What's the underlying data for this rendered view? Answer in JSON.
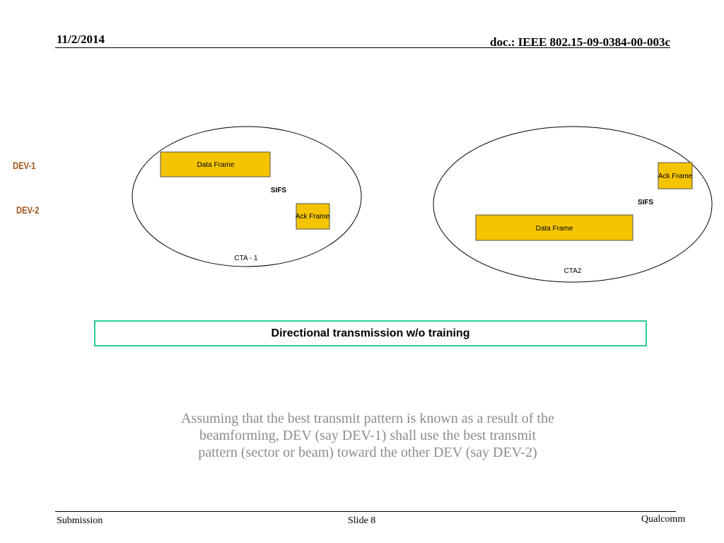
{
  "header": {
    "date": "11/2/2014",
    "doc": "doc.: IEEE 802.15-09-0384-00-003c"
  },
  "devices": {
    "dev1": "DEV-1",
    "dev2": "DEV-2"
  },
  "cta1": {
    "data_frame": "Data Frame",
    "sifs": "SIFS",
    "ack_frame": "Ack Frame",
    "label": "CTA - 1"
  },
  "cta2": {
    "ack_frame": "Ack Frame",
    "sifs": "SIFS",
    "data_frame": "Data Frame",
    "label": "CTA2"
  },
  "caption": "Directional transmission w/o training",
  "body": {
    "line1": "Assuming that the best transmit pattern is known as a result of the",
    "line2": "beamforming, DEV (say DEV-1) shall use the best transmit",
    "line3": "pattern (sector or beam) toward the other DEV (say DEV-2)"
  },
  "footer": {
    "left": "Submission",
    "center": "Slide 8",
    "right": "Qualcomm"
  },
  "colors": {
    "frame_fill": "#f5c400",
    "device_label": "#a0521a",
    "caption_border": "#2ecc9a",
    "body_text": "#8c8c8c"
  }
}
